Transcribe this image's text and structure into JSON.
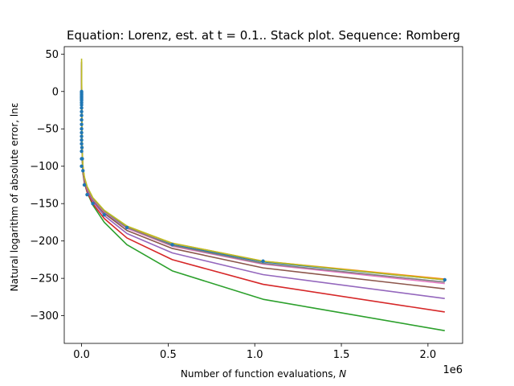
{
  "chart_data": {
    "type": "line",
    "title": "Equation: Lorenz, est. at t = 0.1.. Stack plot. Sequence: Romberg",
    "xlabel": "Number of function evaluations, N",
    "xlabel_prefix": "Number of function evaluations, ",
    "xlabel_var": "N",
    "ylabel": "Natural logarithm of absolute error, lnε",
    "x_offset_label": "1e6",
    "xlim": [
      -100000,
      2200000
    ],
    "ylim": [
      -337,
      60
    ],
    "x_ticks": [
      0,
      500000,
      1000000,
      1500000,
      2000000
    ],
    "x_tick_labels": [
      "0.0",
      "0.5",
      "1.0",
      "1.5",
      "2.0"
    ],
    "y_ticks": [
      50,
      0,
      -50,
      -100,
      -150,
      -200,
      -250,
      -300
    ],
    "y_tick_labels": [
      "50",
      "0",
      "−50",
      "−100",
      "−150",
      "−200",
      "−250",
      "−300"
    ],
    "grid": false,
    "series": [
      {
        "color": "#1f77b4",
        "style": "points",
        "x": [
          0,
          0,
          0,
          0,
          0,
          0,
          0,
          0,
          0,
          0,
          0,
          0,
          0,
          0,
          0,
          0,
          0,
          0,
          0,
          0,
          0,
          0
        ],
        "y": [
          0,
          -2,
          -4,
          -6,
          -8,
          -10,
          -12,
          -15,
          -18,
          -22,
          -27,
          -32,
          -38,
          -44,
          -50,
          -55,
          -60,
          -65,
          -70,
          -80,
          -90,
          -100
        ]
      },
      {
        "color": "#1f77b4",
        "style": "points",
        "x": [
          2000,
          4000,
          8000,
          16000,
          32000,
          65000,
          131000,
          262000,
          524000,
          1048000,
          2097000
        ],
        "y": [
          -75,
          -90,
          -106,
          -125,
          -138,
          -150,
          -165,
          -182,
          -205,
          -227,
          -252
        ]
      },
      {
        "color": "#1f77b4",
        "style": "line",
        "x": [
          0,
          2000,
          4000,
          8000,
          16000,
          32000,
          65000,
          131000,
          262000,
          524000,
          1048000,
          2097000
        ],
        "y": [
          20,
          -70,
          -90,
          -106,
          -118,
          -130,
          -145,
          -162,
          -183,
          -205,
          -228,
          -252
        ]
      },
      {
        "color": "#ff7f0e",
        "style": "line",
        "x": [
          0,
          2000,
          4000,
          8000,
          16000,
          32000,
          65000,
          131000,
          262000,
          524000,
          1048000,
          2097000
        ],
        "y": [
          40,
          -50,
          -80,
          -100,
          -115,
          -128,
          -143,
          -160,
          -181,
          -203,
          -227,
          -251
        ]
      },
      {
        "color": "#2ca02c",
        "style": "line",
        "x": [
          0,
          2000,
          4000,
          8000,
          16000,
          32000,
          65000,
          131000,
          262000,
          524000,
          1048000,
          2097000
        ],
        "y": [
          30,
          -65,
          -92,
          -110,
          -122,
          -135,
          -152,
          -175,
          -205,
          -240,
          -278,
          -320
        ]
      },
      {
        "color": "#d62728",
        "style": "line",
        "x": [
          0,
          2000,
          4000,
          8000,
          16000,
          32000,
          65000,
          131000,
          262000,
          524000,
          1048000,
          2097000
        ],
        "y": [
          32,
          -62,
          -90,
          -108,
          -121,
          -134,
          -150,
          -170,
          -196,
          -225,
          -258,
          -295
        ]
      },
      {
        "color": "#9467bd",
        "style": "line",
        "x": [
          0,
          2000,
          4000,
          8000,
          16000,
          32000,
          65000,
          131000,
          262000,
          524000,
          1048000,
          2097000
        ],
        "y": [
          34,
          -60,
          -88,
          -106,
          -119,
          -132,
          -147,
          -166,
          -190,
          -216,
          -245,
          -277
        ]
      },
      {
        "color": "#8c564b",
        "style": "line",
        "x": [
          0,
          2000,
          4000,
          8000,
          16000,
          32000,
          65000,
          131000,
          262000,
          524000,
          1048000,
          2097000
        ],
        "y": [
          36,
          -58,
          -86,
          -104,
          -117,
          -130,
          -145,
          -163,
          -186,
          -210,
          -236,
          -264
        ]
      },
      {
        "color": "#e377c2",
        "style": "line",
        "x": [
          0,
          2000,
          4000,
          8000,
          16000,
          32000,
          65000,
          131000,
          262000,
          524000,
          1048000,
          2097000
        ],
        "y": [
          38,
          -56,
          -85,
          -103,
          -116,
          -129,
          -144,
          -161,
          -183,
          -207,
          -231,
          -257
        ]
      },
      {
        "color": "#7f7f7f",
        "style": "line",
        "x": [
          0,
          2000,
          4000,
          8000,
          16000,
          32000,
          65000,
          131000,
          262000,
          524000,
          1048000,
          2097000
        ],
        "y": [
          39,
          -55,
          -84,
          -102,
          -115,
          -128,
          -143,
          -160,
          -182,
          -206,
          -230,
          -255
        ]
      },
      {
        "color": "#bcbd22",
        "style": "line",
        "x": [
          0,
          2000,
          4000,
          8000,
          16000,
          32000,
          65000,
          131000,
          262000,
          524000,
          1048000,
          2097000
        ],
        "y": [
          44,
          -52,
          -82,
          -101,
          -114,
          -127,
          -142,
          -159,
          -180,
          -203,
          -227,
          -252
        ]
      }
    ]
  }
}
